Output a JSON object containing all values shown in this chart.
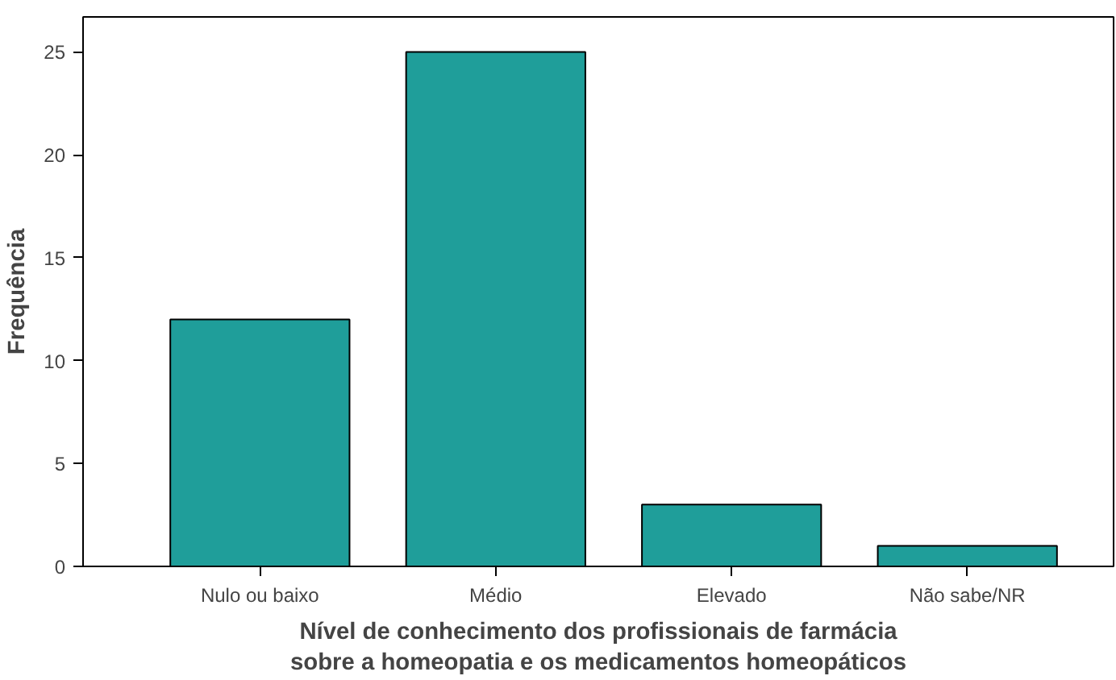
{
  "chart_data": {
    "type": "bar",
    "xlabel": "Nível de conhecimento dos profissionais de farmácia\nsobre a homeopatia e os medicamentos homeopáticos",
    "ylabel": "Frequência",
    "categories": [
      "Nulo ou baixo",
      "Médio",
      "Elevado",
      "Não sabe/NR"
    ],
    "values": [
      12,
      25,
      3,
      1
    ],
    "color": "#1f9e9a",
    "ylim": [
      0,
      26.7
    ],
    "yticks": [
      0,
      5,
      10,
      15,
      20,
      25
    ],
    "grid": false
  }
}
